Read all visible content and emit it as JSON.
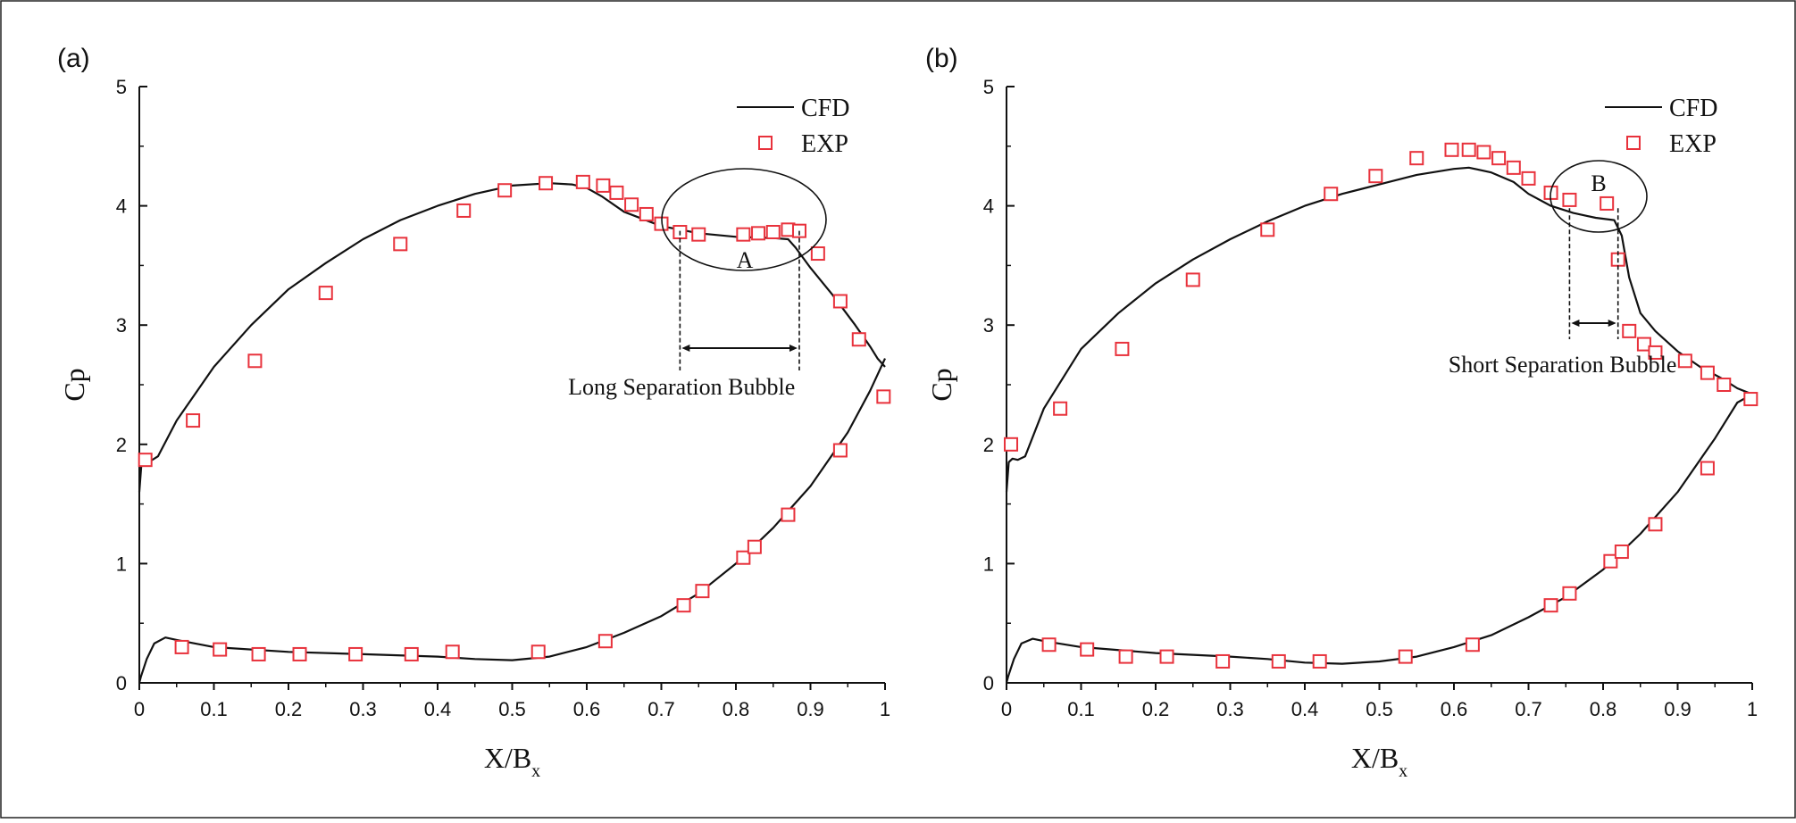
{
  "chart_data": [
    {
      "type": "line",
      "panel_label": "(a)",
      "xlabel": "X/B",
      "xlabel_sub": "x",
      "ylabel": "Cp",
      "xlim": [
        0,
        1
      ],
      "ylim": [
        0,
        5
      ],
      "xticks": [
        "0",
        "0.1",
        "0.2",
        "0.3",
        "0.4",
        "0.5",
        "0.6",
        "0.7",
        "0.8",
        "0.9",
        "1"
      ],
      "yticks": [
        "0",
        "1",
        "2",
        "3",
        "4",
        "5"
      ],
      "legend": [
        {
          "label": "CFD",
          "style": "line"
        },
        {
          "label": "EXP",
          "style": "square-marker"
        }
      ],
      "legend_position": "top-right",
      "colors": {
        "cfd": "#111111",
        "exp": "#e8323c"
      },
      "annotations": {
        "circle_label": "A",
        "bubble_text": "Long Separation Bubble",
        "bubble_start": 0.725,
        "bubble_end": 0.885
      },
      "series": [
        {
          "name": "CFD",
          "x": [
            0.0,
            0.003,
            0.008,
            0.015,
            0.025,
            0.05,
            0.1,
            0.15,
            0.2,
            0.25,
            0.3,
            0.35,
            0.4,
            0.45,
            0.5,
            0.55,
            0.58,
            0.6,
            0.62,
            0.65,
            0.7,
            0.75,
            0.8,
            0.85,
            0.87,
            0.88,
            0.9,
            0.93,
            0.96,
            0.98,
            0.99,
            1.0
          ],
          "y": [
            1.6,
            1.85,
            1.87,
            1.86,
            1.9,
            2.2,
            2.65,
            3.0,
            3.3,
            3.52,
            3.72,
            3.88,
            4.0,
            4.1,
            4.17,
            4.19,
            4.18,
            4.15,
            4.08,
            3.95,
            3.83,
            3.77,
            3.74,
            3.73,
            3.72,
            3.65,
            3.48,
            3.25,
            3.0,
            2.82,
            2.72,
            2.65
          ]
        },
        {
          "name": "CFD",
          "x": [
            0.0,
            0.002,
            0.01,
            0.02,
            0.035,
            0.05,
            0.1,
            0.2,
            0.3,
            0.4,
            0.45,
            0.5,
            0.55,
            0.6,
            0.65,
            0.7,
            0.75,
            0.8,
            0.85,
            0.9,
            0.95,
            0.98,
            1.0
          ],
          "y": [
            0.0,
            0.05,
            0.2,
            0.33,
            0.38,
            0.36,
            0.3,
            0.26,
            0.24,
            0.22,
            0.2,
            0.19,
            0.22,
            0.3,
            0.42,
            0.56,
            0.75,
            1.0,
            1.3,
            1.65,
            2.1,
            2.45,
            2.72
          ]
        },
        {
          "name": "EXP",
          "x": [
            0.008,
            0.072,
            0.155,
            0.25,
            0.35,
            0.435,
            0.49,
            0.545,
            0.595,
            0.622,
            0.64,
            0.66,
            0.68,
            0.7,
            0.725,
            0.75,
            0.81,
            0.83,
            0.85,
            0.87,
            0.885,
            0.91,
            0.94,
            0.965,
            0.998,
            0.057,
            0.108,
            0.16,
            0.215,
            0.29,
            0.365,
            0.42,
            0.535,
            0.625,
            0.73,
            0.755,
            0.81,
            0.825,
            0.87,
            0.94
          ],
          "y": [
            1.87,
            2.2,
            2.7,
            3.27,
            3.68,
            3.96,
            4.13,
            4.19,
            4.2,
            4.17,
            4.11,
            4.01,
            3.93,
            3.85,
            3.78,
            3.76,
            3.76,
            3.77,
            3.78,
            3.8,
            3.79,
            3.6,
            3.2,
            2.88,
            2.4,
            0.3,
            0.28,
            0.24,
            0.24,
            0.24,
            0.24,
            0.26,
            0.26,
            0.35,
            0.65,
            0.77,
            1.05,
            1.14,
            1.41,
            1.95
          ]
        }
      ]
    },
    {
      "type": "line",
      "panel_label": "(b)",
      "xlabel": "X/B",
      "xlabel_sub": "x",
      "ylabel": "Cp",
      "xlim": [
        0,
        1
      ],
      "ylim": [
        0,
        5
      ],
      "xticks": [
        "0",
        "0.1",
        "0.2",
        "0.3",
        "0.4",
        "0.5",
        "0.6",
        "0.7",
        "0.8",
        "0.9",
        "1"
      ],
      "yticks": [
        "0",
        "1",
        "2",
        "3",
        "4",
        "5"
      ],
      "legend": [
        {
          "label": "CFD",
          "style": "line"
        },
        {
          "label": "EXP",
          "style": "square-marker"
        }
      ],
      "legend_position": "top-right",
      "colors": {
        "cfd": "#111111",
        "exp": "#e8323c"
      },
      "annotations": {
        "circle_label": "B",
        "bubble_text": "Short Separation Bubble",
        "bubble_start": 0.755,
        "bubble_end": 0.82
      },
      "series": [
        {
          "name": "CFD",
          "x": [
            0.0,
            0.003,
            0.008,
            0.015,
            0.025,
            0.05,
            0.1,
            0.15,
            0.2,
            0.25,
            0.3,
            0.35,
            0.4,
            0.45,
            0.5,
            0.55,
            0.6,
            0.62,
            0.65,
            0.68,
            0.7,
            0.73,
            0.76,
            0.79,
            0.815,
            0.825,
            0.835,
            0.85,
            0.87,
            0.9,
            0.93,
            0.96,
            0.98,
            1.0
          ],
          "y": [
            1.6,
            1.85,
            1.88,
            1.87,
            1.9,
            2.3,
            2.8,
            3.1,
            3.35,
            3.55,
            3.72,
            3.87,
            4.0,
            4.1,
            4.18,
            4.26,
            4.31,
            4.32,
            4.28,
            4.2,
            4.1,
            4.0,
            3.94,
            3.9,
            3.88,
            3.75,
            3.4,
            3.1,
            2.95,
            2.78,
            2.65,
            2.55,
            2.47,
            2.42
          ]
        },
        {
          "name": "CFD",
          "x": [
            0.0,
            0.002,
            0.01,
            0.02,
            0.035,
            0.05,
            0.1,
            0.2,
            0.3,
            0.35,
            0.4,
            0.45,
            0.5,
            0.55,
            0.6,
            0.65,
            0.7,
            0.75,
            0.8,
            0.85,
            0.9,
            0.95,
            0.98,
            1.0
          ],
          "y": [
            0.0,
            0.05,
            0.2,
            0.33,
            0.37,
            0.35,
            0.3,
            0.25,
            0.22,
            0.2,
            0.17,
            0.16,
            0.18,
            0.22,
            0.3,
            0.4,
            0.55,
            0.72,
            0.95,
            1.25,
            1.6,
            2.05,
            2.35,
            2.42
          ]
        },
        {
          "name": "EXP",
          "x": [
            0.006,
            0.072,
            0.155,
            0.25,
            0.35,
            0.435,
            0.495,
            0.55,
            0.597,
            0.62,
            0.64,
            0.66,
            0.68,
            0.7,
            0.73,
            0.755,
            0.805,
            0.82,
            0.835,
            0.855,
            0.87,
            0.91,
            0.94,
            0.962,
            0.998,
            0.057,
            0.108,
            0.16,
            0.215,
            0.29,
            0.365,
            0.42,
            0.535,
            0.625,
            0.73,
            0.755,
            0.81,
            0.825,
            0.87,
            0.94
          ],
          "y": [
            2.0,
            2.3,
            2.8,
            3.38,
            3.8,
            4.1,
            4.25,
            4.4,
            4.47,
            4.47,
            4.45,
            4.4,
            4.32,
            4.23,
            4.11,
            4.05,
            4.02,
            3.55,
            2.95,
            2.84,
            2.77,
            2.7,
            2.6,
            2.5,
            2.38,
            0.32,
            0.28,
            0.22,
            0.22,
            0.18,
            0.18,
            0.18,
            0.22,
            0.32,
            0.65,
            0.75,
            1.02,
            1.1,
            1.33,
            1.8
          ]
        }
      ]
    }
  ]
}
